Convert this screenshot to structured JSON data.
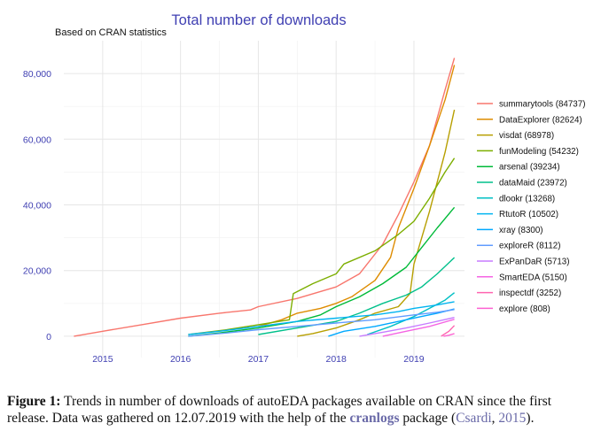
{
  "chart_data": {
    "type": "line",
    "title": "Total number of downloads",
    "subtitle": "Based on CRAN statistics",
    "xlabel": "",
    "ylabel": "",
    "xlim": [
      2014.5,
      2019.65
    ],
    "ylim": [
      -6500,
      90000
    ],
    "x_ticks": [
      2015,
      2016,
      2017,
      2018,
      2019
    ],
    "x_tick_labels": [
      "2015",
      "2016",
      "2017",
      "2018",
      "2019"
    ],
    "y_ticks": [
      0,
      20000,
      40000,
      60000,
      80000
    ],
    "y_tick_labels": [
      "0",
      "20,000",
      "40,000",
      "60,000",
      "80,000"
    ],
    "grid": true,
    "legend_position": "right",
    "series": [
      {
        "name": "summarytools (84737)",
        "color": "#f8766d",
        "x": [
          2014.63,
          2015.0,
          2015.5,
          2016.0,
          2016.5,
          2016.9,
          2017.0,
          2017.5,
          2018.0,
          2018.3,
          2018.6,
          2018.8,
          2019.0,
          2019.2,
          2019.4,
          2019.52
        ],
        "values": [
          0,
          1500,
          3500,
          5500,
          7000,
          8000,
          9000,
          11500,
          15000,
          19000,
          28000,
          37000,
          47000,
          58000,
          75000,
          84737
        ]
      },
      {
        "name": "DataExplorer (82624)",
        "color": "#de8c00",
        "x": [
          2017.0,
          2017.3,
          2017.5,
          2017.8,
          2018.0,
          2018.2,
          2018.5,
          2018.7,
          2018.8,
          2019.0,
          2019.2,
          2019.4,
          2019.52
        ],
        "values": [
          3000,
          5000,
          7000,
          8500,
          10000,
          12000,
          17000,
          24000,
          33000,
          45000,
          58000,
          72000,
          82624
        ]
      },
      {
        "name": "visdat (68978)",
        "color": "#b79f00",
        "x": [
          2017.5,
          2017.7,
          2018.0,
          2018.3,
          2018.5,
          2018.8,
          2018.95,
          2019.0,
          2019.2,
          2019.4,
          2019.52
        ],
        "values": [
          0,
          800,
          2500,
          5000,
          7000,
          9000,
          13000,
          22000,
          38000,
          56000,
          68978
        ]
      },
      {
        "name": "funModeling (54232)",
        "color": "#7cae00",
        "x": [
          2016.1,
          2016.6,
          2017.0,
          2017.4,
          2017.45,
          2017.7,
          2018.0,
          2018.1,
          2018.5,
          2018.8,
          2019.0,
          2019.2,
          2019.4,
          2019.52
        ],
        "values": [
          500,
          2000,
          3500,
          5000,
          13000,
          16000,
          19000,
          22000,
          26000,
          31000,
          35000,
          42000,
          50000,
          54232
        ]
      },
      {
        "name": "arsenal (39234)",
        "color": "#00ba38",
        "x": [
          2016.1,
          2016.5,
          2017.0,
          2017.5,
          2017.8,
          2018.0,
          2018.3,
          2018.6,
          2018.9,
          2019.1,
          2019.3,
          2019.52
        ],
        "values": [
          0,
          1000,
          2500,
          4500,
          6500,
          9000,
          12000,
          16000,
          21000,
          27000,
          33000,
          39234
        ]
      },
      {
        "name": "dataMaid (23972)",
        "color": "#00c08b",
        "x": [
          2017.0,
          2017.5,
          2018.0,
          2018.3,
          2018.6,
          2018.9,
          2019.1,
          2019.3,
          2019.52
        ],
        "values": [
          500,
          2500,
          4500,
          7000,
          10000,
          12500,
          15000,
          19000,
          23972
        ]
      },
      {
        "name": "dlookr (13268)",
        "color": "#00bfc4",
        "x": [
          2018.4,
          2018.7,
          2019.0,
          2019.2,
          2019.4,
          2019.52
        ],
        "values": [
          500,
          3000,
          6000,
          8500,
          11000,
          13268
        ]
      },
      {
        "name": "RtutoR (10502)",
        "color": "#00b4f0",
        "x": [
          2016.1,
          2016.5,
          2017.0,
          2017.5,
          2018.0,
          2018.5,
          2018.8,
          2019.0,
          2019.3,
          2019.52
        ],
        "values": [
          500,
          1500,
          3000,
          4500,
          5500,
          6500,
          7500,
          8500,
          9500,
          10502
        ]
      },
      {
        "name": "xray (8300)",
        "color": "#00a9ff",
        "x": [
          2017.9,
          2018.1,
          2018.5,
          2018.8,
          2019.1,
          2019.3,
          2019.52
        ],
        "values": [
          0,
          1500,
          3000,
          4500,
          6000,
          7000,
          8300
        ]
      },
      {
        "name": "exploreR (8112)",
        "color": "#619cff",
        "x": [
          2016.1,
          2016.6,
          2017.0,
          2017.5,
          2018.0,
          2018.5,
          2019.0,
          2019.3,
          2019.52
        ],
        "values": [
          0,
          1000,
          2000,
          3000,
          4000,
          5000,
          6500,
          7300,
          8112
        ]
      },
      {
        "name": "ExPanDaR (5713)",
        "color": "#c77cff",
        "x": [
          2018.3,
          2018.6,
          2018.9,
          2019.2,
          2019.52
        ],
        "values": [
          0,
          1200,
          2500,
          4000,
          5713
        ]
      },
      {
        "name": "SmartEDA (5150)",
        "color": "#f564e3",
        "x": [
          2018.6,
          2018.9,
          2019.2,
          2019.52
        ],
        "values": [
          0,
          1500,
          3000,
          5150
        ]
      },
      {
        "name": "inspectdf (3252)",
        "color": "#ff64b0",
        "x": [
          2019.35,
          2019.45,
          2019.52
        ],
        "values": [
          0,
          1500,
          3252
        ]
      },
      {
        "name": "explore (808)",
        "color": "#fd61d1",
        "x": [
          2019.38,
          2019.45,
          2019.52
        ],
        "values": [
          0,
          300,
          808
        ]
      }
    ]
  },
  "caption": {
    "label": "Figure 1:",
    "text1": "Trends in number of downloads of autoEDA packages available on CRAN since the first release. Data was gathered on 12.07.2019 with the help of the",
    "package": "cranlogs",
    "text2": "package (",
    "cite_author": "Csardi",
    "cite_sep": ", ",
    "cite_year": "2015",
    "text3": ")."
  }
}
